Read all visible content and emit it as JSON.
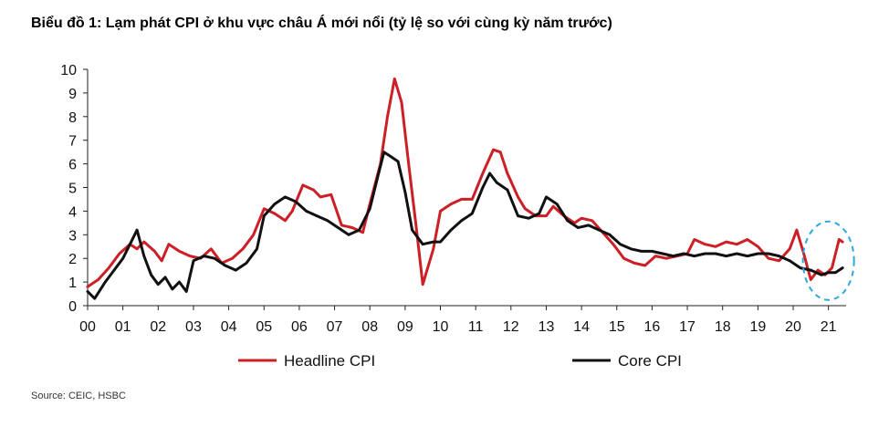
{
  "title": "Biểu đồ 1: Lạm phát CPI ở khu vực châu Á mới nổi (tỷ lệ so với cùng kỳ năm trước)",
  "source": "Source: CEIC, HSBC",
  "chart_data": {
    "type": "line",
    "title": "Biểu đồ 1: Lạm phát CPI ở khu vực châu Á mới nổi (tỷ lệ so với cùng kỳ năm trước)",
    "xlabel": "",
    "ylabel": "",
    "xlim": [
      2000,
      2021.5
    ],
    "ylim": [
      0,
      10
    ],
    "yticks": [
      "0",
      "1",
      "2",
      "3",
      "4",
      "5",
      "6",
      "7",
      "8",
      "9",
      "10"
    ],
    "xticks": [
      "00",
      "01",
      "02",
      "03",
      "04",
      "05",
      "06",
      "07",
      "08",
      "09",
      "10",
      "11",
      "12",
      "13",
      "14",
      "15",
      "16",
      "17",
      "18",
      "19",
      "20",
      "21"
    ],
    "grid": false,
    "legend_position": "bottom",
    "annotation": "dashed ellipse highlighting 2021",
    "series": [
      {
        "name": "Headline CPI",
        "color": "#cc1f26",
        "x": [
          2000.0,
          2000.3,
          2000.6,
          2000.9,
          2001.2,
          2001.4,
          2001.6,
          2001.9,
          2002.1,
          2002.3,
          2002.6,
          2002.9,
          2003.2,
          2003.5,
          2003.8,
          2004.1,
          2004.4,
          2004.7,
          2005.0,
          2005.3,
          2005.6,
          2005.8,
          2006.1,
          2006.4,
          2006.6,
          2006.9,
          2007.2,
          2007.5,
          2007.8,
          2008.0,
          2008.3,
          2008.5,
          2008.7,
          2008.9,
          2009.1,
          2009.3,
          2009.5,
          2009.8,
          2010.0,
          2010.3,
          2010.6,
          2010.9,
          2011.2,
          2011.5,
          2011.7,
          2011.9,
          2012.2,
          2012.4,
          2012.7,
          2013.0,
          2013.2,
          2013.5,
          2013.8,
          2014.0,
          2014.3,
          2014.6,
          2014.9,
          2015.2,
          2015.5,
          2015.8,
          2016.1,
          2016.4,
          2016.7,
          2017.0,
          2017.2,
          2017.5,
          2017.8,
          2018.1,
          2018.4,
          2018.7,
          2019.0,
          2019.3,
          2019.6,
          2019.9,
          2020.1,
          2020.3,
          2020.5,
          2020.7,
          2020.9,
          2021.1,
          2021.3,
          2021.4
        ],
        "values": [
          0.8,
          1.1,
          1.6,
          2.2,
          2.6,
          2.4,
          2.7,
          2.3,
          1.9,
          2.6,
          2.3,
          2.1,
          2.0,
          2.4,
          1.8,
          2.0,
          2.4,
          3.0,
          4.1,
          3.9,
          3.6,
          4.0,
          5.1,
          4.9,
          4.6,
          4.7,
          3.4,
          3.3,
          3.1,
          4.3,
          6.0,
          8.0,
          9.6,
          8.6,
          6.0,
          3.5,
          0.9,
          2.4,
          4.0,
          4.3,
          4.5,
          4.5,
          5.6,
          6.6,
          6.5,
          5.6,
          4.6,
          4.1,
          3.8,
          3.8,
          4.2,
          3.8,
          3.5,
          3.7,
          3.6,
          3.1,
          2.6,
          2.0,
          1.8,
          1.7,
          2.1,
          2.0,
          2.1,
          2.2,
          2.8,
          2.6,
          2.5,
          2.7,
          2.6,
          2.8,
          2.5,
          2.0,
          1.9,
          2.4,
          3.2,
          2.2,
          1.1,
          1.5,
          1.3,
          1.6,
          2.8,
          2.7
        ]
      },
      {
        "name": "Core CPI",
        "color": "#111111",
        "x": [
          2000.0,
          2000.2,
          2000.5,
          2000.8,
          2001.0,
          2001.2,
          2001.4,
          2001.6,
          2001.8,
          2002.0,
          2002.2,
          2002.4,
          2002.6,
          2002.8,
          2003.0,
          2003.3,
          2003.6,
          2003.9,
          2004.2,
          2004.5,
          2004.8,
          2005.0,
          2005.3,
          2005.6,
          2005.9,
          2006.2,
          2006.5,
          2006.8,
          2007.1,
          2007.4,
          2007.7,
          2008.0,
          2008.2,
          2008.4,
          2008.6,
          2008.8,
          2009.0,
          2009.2,
          2009.5,
          2009.8,
          2010.0,
          2010.3,
          2010.6,
          2010.9,
          2011.2,
          2011.4,
          2011.6,
          2011.9,
          2012.2,
          2012.5,
          2012.8,
          2013.0,
          2013.3,
          2013.6,
          2013.9,
          2014.2,
          2014.5,
          2014.8,
          2015.1,
          2015.4,
          2015.7,
          2016.0,
          2016.3,
          2016.6,
          2016.9,
          2017.2,
          2017.5,
          2017.8,
          2018.1,
          2018.4,
          2018.7,
          2019.0,
          2019.3,
          2019.6,
          2019.9,
          2020.2,
          2020.5,
          2020.8,
          2021.0,
          2021.2,
          2021.4
        ],
        "values": [
          0.6,
          0.3,
          1.0,
          1.6,
          2.0,
          2.6,
          3.2,
          2.1,
          1.3,
          0.9,
          1.2,
          0.7,
          1.0,
          0.6,
          1.9,
          2.1,
          2.0,
          1.7,
          1.5,
          1.8,
          2.4,
          3.8,
          4.3,
          4.6,
          4.4,
          4.0,
          3.8,
          3.6,
          3.3,
          3.0,
          3.2,
          4.1,
          5.3,
          6.5,
          6.3,
          6.1,
          4.8,
          3.2,
          2.6,
          2.7,
          2.7,
          3.2,
          3.6,
          3.9,
          5.0,
          5.6,
          5.2,
          4.9,
          3.8,
          3.7,
          3.9,
          4.6,
          4.3,
          3.6,
          3.3,
          3.4,
          3.2,
          3.0,
          2.6,
          2.4,
          2.3,
          2.3,
          2.2,
          2.1,
          2.2,
          2.1,
          2.2,
          2.2,
          2.1,
          2.2,
          2.1,
          2.2,
          2.2,
          2.1,
          1.9,
          1.6,
          1.5,
          1.3,
          1.4,
          1.4,
          1.6
        ]
      }
    ]
  }
}
